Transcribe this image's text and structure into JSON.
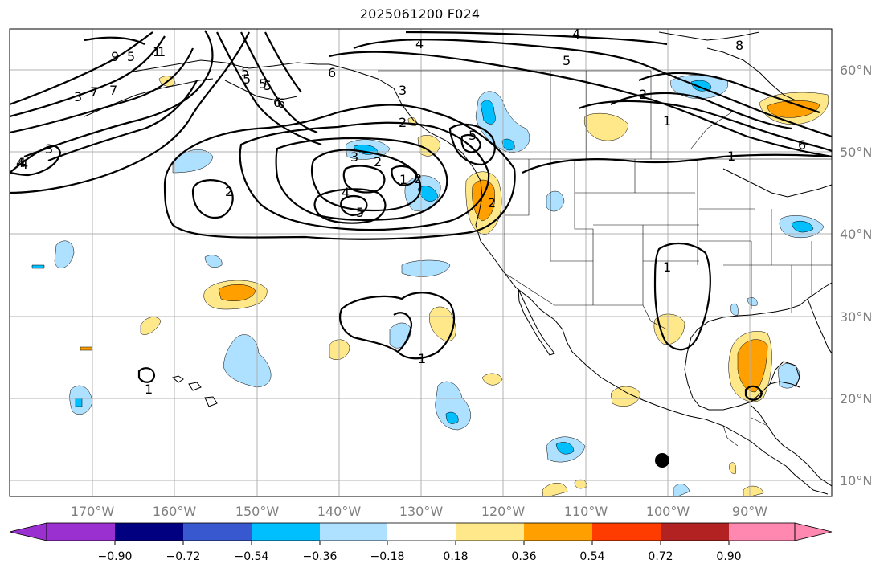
{
  "title": "2025061200 F024",
  "lon_labels": [
    "170°W",
    "160°W",
    "150°W",
    "140°W",
    "130°W",
    "120°W",
    "110°W",
    "100°W",
    "90°W"
  ],
  "lat_labels": [
    "60°N",
    "50°N",
    "40°N",
    "30°N",
    "20°N",
    "10°N"
  ],
  "colorbar": {
    "ticks": [
      "−0.90",
      "−0.72",
      "−0.54",
      "−0.36",
      "−0.18",
      "0.18",
      "0.36",
      "0.54",
      "0.72",
      "0.90"
    ],
    "colors": [
      "#9b30d0",
      "#000080",
      "#3858d0",
      "#00bfff",
      "#aee0ff",
      "#ffffff",
      "#ffe88a",
      "#ffa000",
      "#ff3c00",
      "#b22222",
      "#ff88b0"
    ]
  },
  "contour_labels": [
    "9",
    "7",
    "5",
    "1",
    "3",
    "5",
    "7",
    "4",
    "3",
    "1",
    "2",
    "3",
    "4",
    "5",
    "6",
    "5",
    "4",
    "6",
    "2",
    "3",
    "2",
    "1",
    "4",
    "5",
    "2",
    "5",
    "2",
    "1",
    "1",
    "1",
    "1",
    "4",
    "6",
    "1",
    "6",
    "5",
    "5",
    "8",
    "2",
    "4"
  ]
}
